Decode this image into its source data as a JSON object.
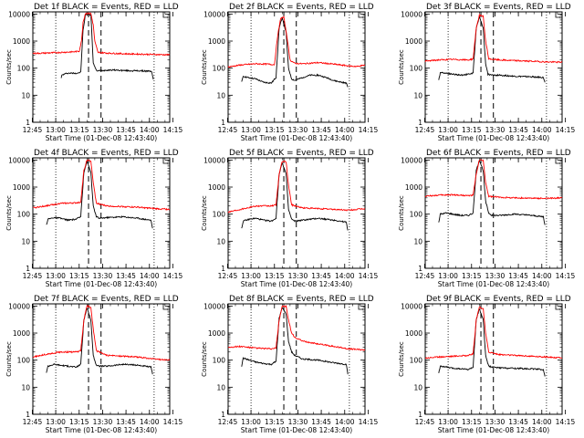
{
  "chart_data": [
    {
      "type": "line",
      "title": "Det 1f BLACK = Events, RED = LLD",
      "xlabel": "Start Time (01-Dec-08 12:43:40)",
      "ylabel": "Counts/sec",
      "xticks": [
        "12:45",
        "13:00",
        "13:15",
        "13:30",
        "13:45",
        "14:00",
        "14:15"
      ],
      "yticks": [
        "1",
        "10",
        "100",
        "1000",
        "10000"
      ],
      "ylim": [
        1,
        12000
      ],
      "yscale": "log",
      "xlim_minutes": [
        12.33,
        100
      ],
      "vertical_dotted_lines": [
        "13:00",
        "14:03"
      ],
      "vertical_dashed_lines": [
        "13:21",
        "13:29"
      ],
      "series": [
        {
          "name": "Events",
          "color": "#000000",
          "x_minutes": [
            30.5,
            31,
            34,
            38,
            40,
            43,
            44.5,
            46,
            49.5,
            50,
            51,
            53,
            55,
            60,
            65,
            70,
            75,
            80,
            85,
            88.5,
            89,
            89.5
          ],
          "values": [
            45,
            55,
            65,
            65,
            65,
            70,
            2500,
            9500,
            9500,
            2500,
            160,
            80,
            80,
            85,
            85,
            82,
            80,
            80,
            78,
            76,
            50,
            38
          ]
        },
        {
          "name": "LLD",
          "color": "#ff0000",
          "x_minutes": [
            12.33,
            20,
            30,
            38,
            42,
            43.5,
            44.5,
            46,
            49.5,
            51,
            52,
            54,
            60,
            70,
            80,
            90,
            100
          ],
          "values": [
            350,
            360,
            380,
            400,
            420,
            1000,
            5000,
            10500,
            10500,
            4000,
            1000,
            380,
            360,
            340,
            330,
            320,
            310
          ]
        }
      ]
    },
    {
      "type": "line",
      "title": "Det 2f BLACK = Events, RED = LLD",
      "xlabel": "Start Time (01-Dec-08 12:43:40)",
      "ylabel": "Counts/sec",
      "xticks": [
        "12:45",
        "13:00",
        "13:15",
        "13:30",
        "13:45",
        "14:00",
        "14:15"
      ],
      "yticks": [
        "1",
        "10",
        "100",
        "1000",
        "10000"
      ],
      "ylim": [
        1,
        12000
      ],
      "yscale": "log",
      "xlim_minutes": [
        12.33,
        100
      ],
      "vertical_dotted_lines": [
        "13:00",
        "14:03"
      ],
      "vertical_dashed_lines": [
        "13:21",
        "13:29"
      ],
      "series": [
        {
          "name": "Events",
          "color": "#000000",
          "x_minutes": [
            21,
            22,
            25,
            30,
            35,
            40,
            43,
            45,
            47,
            49.5,
            51,
            53,
            55,
            60,
            65,
            70,
            75,
            80,
            85,
            88,
            89
          ],
          "values": [
            30,
            50,
            45,
            40,
            30,
            28,
            45,
            3000,
            7500,
            2000,
            100,
            40,
            35,
            45,
            55,
            55,
            45,
            35,
            30,
            28,
            20
          ]
        },
        {
          "name": "LLD",
          "color": "#ff0000",
          "x_minutes": [
            12.33,
            20,
            30,
            38,
            42,
            44,
            46,
            48,
            50,
            52,
            55,
            60,
            70,
            80,
            90,
            95,
            100
          ],
          "values": [
            110,
            130,
            145,
            140,
            135,
            1500,
            7000,
            7500,
            1500,
            200,
            150,
            145,
            160,
            140,
            120,
            115,
            130
          ]
        }
      ]
    },
    {
      "type": "line",
      "title": "Det 3f BLACK = Events, RED = LLD",
      "xlabel": "Start Time (01-Dec-08 12:43:40)",
      "ylabel": "Counts/sec",
      "xticks": [
        "12:45",
        "13:00",
        "13:15",
        "13:30",
        "13:45",
        "14:00",
        "14:15"
      ],
      "yticks": [
        "1",
        "10",
        "100",
        "1000",
        "10000"
      ],
      "ylim": [
        1,
        12000
      ],
      "yscale": "log",
      "xlim_minutes": [
        12.33,
        100
      ],
      "vertical_dotted_lines": [
        "13:00",
        "14:03"
      ],
      "vertical_dashed_lines": [
        "13:21",
        "13:29"
      ],
      "series": [
        {
          "name": "Events",
          "color": "#000000",
          "x_minutes": [
            21,
            22,
            26,
            30,
            35,
            40,
            43,
            45,
            47,
            49.5,
            51,
            52.5,
            55,
            60,
            70,
            80,
            88,
            89
          ],
          "values": [
            35,
            70,
            65,
            60,
            55,
            60,
            65,
            3000,
            8000,
            3000,
            150,
            60,
            55,
            55,
            50,
            48,
            45,
            30
          ]
        },
        {
          "name": "LLD",
          "color": "#ff0000",
          "x_minutes": [
            12.33,
            20,
            30,
            40,
            43,
            45,
            47,
            49.5,
            51,
            53,
            60,
            70,
            80,
            90,
            100
          ],
          "values": [
            180,
            200,
            210,
            200,
            220,
            3000,
            9000,
            8000,
            1000,
            220,
            200,
            190,
            180,
            170,
            165
          ]
        }
      ]
    },
    {
      "type": "line",
      "title": "Det 4f BLACK = Events, RED = LLD",
      "xlabel": "Start Time (01-Dec-08 12:43:40)",
      "ylabel": "Counts/sec",
      "xticks": [
        "12:45",
        "13:00",
        "13:15",
        "13:30",
        "13:45",
        "14:00",
        "14:15"
      ],
      "yticks": [
        "1",
        "10",
        "100",
        "1000",
        "10000"
      ],
      "ylim": [
        1,
        12000
      ],
      "yscale": "log",
      "xlim_minutes": [
        12.33,
        100
      ],
      "vertical_dotted_lines": [
        "13:00",
        "14:03"
      ],
      "vertical_dashed_lines": [
        "13:21",
        "13:29"
      ],
      "series": [
        {
          "name": "Events",
          "color": "#000000",
          "x_minutes": [
            21,
            22,
            26,
            30,
            35,
            40,
            43,
            45,
            47,
            49.5,
            51,
            53,
            55,
            60,
            70,
            80,
            88,
            89
          ],
          "values": [
            40,
            65,
            75,
            70,
            60,
            65,
            80,
            3500,
            9000,
            3500,
            200,
            80,
            70,
            75,
            80,
            70,
            60,
            30
          ]
        },
        {
          "name": "LLD",
          "color": "#ff0000",
          "x_minutes": [
            12.33,
            20,
            30,
            40,
            43,
            45,
            47,
            49.5,
            51,
            53,
            60,
            70,
            80,
            90,
            100
          ],
          "values": [
            170,
            200,
            250,
            260,
            280,
            4000,
            10000,
            9000,
            1500,
            250,
            200,
            190,
            180,
            160,
            150
          ]
        }
      ]
    },
    {
      "type": "line",
      "title": "Det 5f BLACK = Events, RED = LLD",
      "xlabel": "Start Time (01-Dec-08 12:43:40)",
      "ylabel": "Counts/sec",
      "xticks": [
        "12:45",
        "13:00",
        "13:15",
        "13:30",
        "13:45",
        "14:00",
        "14:15"
      ],
      "yticks": [
        "1",
        "10",
        "100",
        "1000",
        "10000"
      ],
      "ylim": [
        1,
        12000
      ],
      "yscale": "log",
      "xlim_minutes": [
        12.33,
        100
      ],
      "vertical_dotted_lines": [
        "13:00",
        "14:03"
      ],
      "vertical_dashed_lines": [
        "13:21",
        "13:29"
      ],
      "series": [
        {
          "name": "Events",
          "color": "#000000",
          "x_minutes": [
            21,
            22,
            26,
            30,
            35,
            40,
            43,
            45,
            47,
            49.5,
            51,
            53,
            55,
            60,
            70,
            80,
            88,
            89
          ],
          "values": [
            30,
            55,
            65,
            70,
            60,
            55,
            70,
            3000,
            8000,
            3000,
            150,
            65,
            55,
            60,
            70,
            60,
            50,
            25
          ]
        },
        {
          "name": "LLD",
          "color": "#ff0000",
          "x_minutes": [
            12.33,
            20,
            30,
            40,
            43,
            45,
            47,
            49.5,
            51,
            53,
            60,
            70,
            80,
            90,
            100
          ],
          "values": [
            120,
            150,
            200,
            200,
            220,
            3000,
            9000,
            8500,
            1200,
            220,
            170,
            160,
            150,
            140,
            160
          ]
        }
      ]
    },
    {
      "type": "line",
      "title": "Det 6f BLACK = Events, RED = LLD",
      "xlabel": "Start Time (01-Dec-08 12:43:40)",
      "ylabel": "Counts/sec",
      "xticks": [
        "12:45",
        "13:00",
        "13:15",
        "13:30",
        "13:45",
        "14:00",
        "14:15"
      ],
      "yticks": [
        "1",
        "10",
        "100",
        "1000",
        "10000"
      ],
      "ylim": [
        1,
        12000
      ],
      "yscale": "log",
      "xlim_minutes": [
        12.33,
        100
      ],
      "vertical_dotted_lines": [
        "13:00",
        "14:03"
      ],
      "vertical_dashed_lines": [
        "13:21",
        "13:29"
      ],
      "series": [
        {
          "name": "Events",
          "color": "#000000",
          "x_minutes": [
            21,
            22,
            26,
            30,
            35,
            40,
            43,
            45,
            47,
            49.5,
            51,
            53,
            55,
            60,
            70,
            80,
            88,
            89
          ],
          "values": [
            50,
            100,
            110,
            100,
            90,
            90,
            110,
            4000,
            10000,
            4000,
            300,
            110,
            90,
            90,
            100,
            90,
            80,
            40
          ]
        },
        {
          "name": "LLD",
          "color": "#ff0000",
          "x_minutes": [
            12.33,
            20,
            30,
            40,
            43,
            45,
            47,
            49.5,
            51,
            53,
            60,
            70,
            80,
            90,
            100
          ],
          "values": [
            460,
            500,
            520,
            480,
            500,
            3000,
            10000,
            9500,
            1500,
            450,
            420,
            400,
            390,
            380,
            400
          ]
        }
      ]
    },
    {
      "type": "line",
      "title": "Det 7f BLACK = Events, RED = LLD",
      "xlabel": "Start Time (01-Dec-08 12:43:40)",
      "ylabel": "Counts/sec",
      "xticks": [
        "12:45",
        "13:00",
        "13:15",
        "13:30",
        "13:45",
        "14:00",
        "14:15"
      ],
      "yticks": [
        "1",
        "10",
        "100",
        "1000",
        "10000"
      ],
      "ylim": [
        1,
        12000
      ],
      "yscale": "log",
      "xlim_minutes": [
        12.33,
        100
      ],
      "vertical_dotted_lines": [
        "13:00",
        "14:03"
      ],
      "vertical_dashed_lines": [
        "13:21",
        "13:29"
      ],
      "series": [
        {
          "name": "Events",
          "color": "#000000",
          "x_minutes": [
            21,
            22,
            26,
            30,
            35,
            40,
            43,
            45,
            47,
            49.5,
            51,
            53,
            55,
            60,
            70,
            80,
            88,
            89
          ],
          "values": [
            35,
            60,
            70,
            65,
            60,
            55,
            70,
            3000,
            8500,
            3000,
            150,
            65,
            60,
            60,
            70,
            65,
            55,
            30
          ]
        },
        {
          "name": "LLD",
          "color": "#ff0000",
          "x_minutes": [
            12.33,
            20,
            30,
            40,
            43,
            45,
            47,
            49.5,
            51,
            53,
            60,
            70,
            80,
            90,
            100
          ],
          "values": [
            130,
            160,
            200,
            200,
            220,
            3000,
            10000,
            9000,
            1500,
            220,
            150,
            140,
            130,
            110,
            100
          ]
        }
      ]
    },
    {
      "type": "line",
      "title": "Det 8f BLACK = Events, RED = LLD",
      "xlabel": "Start Time (01-Dec-08 12:43:40)",
      "ylabel": "Counts/sec",
      "xticks": [
        "12:45",
        "13:00",
        "13:15",
        "13:30",
        "13:45",
        "14:00",
        "14:15"
      ],
      "yticks": [
        "1",
        "10",
        "100",
        "1000",
        "10000"
      ],
      "ylim": [
        1,
        12000
      ],
      "yscale": "log",
      "xlim_minutes": [
        12.33,
        100
      ],
      "vertical_dotted_lines": [
        "13:00",
        "14:03"
      ],
      "vertical_dashed_lines": [
        "13:21",
        "13:29"
      ],
      "series": [
        {
          "name": "Events",
          "color": "#000000",
          "x_minutes": [
            21,
            22,
            26,
            30,
            35,
            40,
            43,
            45,
            47,
            49.5,
            51,
            53,
            55,
            60,
            70,
            80,
            88,
            89
          ],
          "values": [
            60,
            120,
            100,
            85,
            75,
            70,
            90,
            3500,
            9000,
            5000,
            500,
            200,
            150,
            110,
            100,
            80,
            70,
            30
          ]
        },
        {
          "name": "LLD",
          "color": "#ff0000",
          "x_minutes": [
            12.33,
            20,
            30,
            40,
            43,
            45,
            47,
            49.5,
            51,
            53,
            55,
            60,
            70,
            80,
            90,
            100
          ],
          "values": [
            300,
            320,
            280,
            260,
            280,
            3000,
            10000,
            9500,
            3000,
            1000,
            700,
            500,
            400,
            320,
            260,
            240
          ]
        }
      ]
    },
    {
      "type": "line",
      "title": "Det 9f BLACK = Events, RED = LLD",
      "xlabel": "Start Time (01-Dec-08 12:43:40)",
      "ylabel": "Counts/sec",
      "xticks": [
        "12:45",
        "13:00",
        "13:15",
        "13:30",
        "13:45",
        "14:00",
        "14:15"
      ],
      "yticks": [
        "1",
        "10",
        "100",
        "1000",
        "10000"
      ],
      "ylim": [
        1,
        12000
      ],
      "yscale": "log",
      "xlim_minutes": [
        12.33,
        100
      ],
      "vertical_dotted_lines": [
        "13:00",
        "14:03"
      ],
      "vertical_dashed_lines": [
        "13:21",
        "13:29"
      ],
      "series": [
        {
          "name": "Events",
          "color": "#000000",
          "x_minutes": [
            21,
            22,
            26,
            30,
            35,
            40,
            43,
            45,
            47,
            49.5,
            51,
            53,
            55,
            60,
            70,
            80,
            88,
            89
          ],
          "values": [
            35,
            60,
            55,
            50,
            48,
            45,
            55,
            3000,
            8000,
            3000,
            150,
            60,
            55,
            52,
            50,
            48,
            45,
            25
          ]
        },
        {
          "name": "LLD",
          "color": "#ff0000",
          "x_minutes": [
            12.33,
            20,
            30,
            40,
            43,
            45,
            47,
            49.5,
            51,
            53,
            60,
            70,
            80,
            90,
            100
          ],
          "values": [
            120,
            130,
            140,
            150,
            170,
            3000,
            9000,
            8000,
            1000,
            200,
            160,
            150,
            140,
            130,
            120
          ]
        }
      ]
    }
  ]
}
